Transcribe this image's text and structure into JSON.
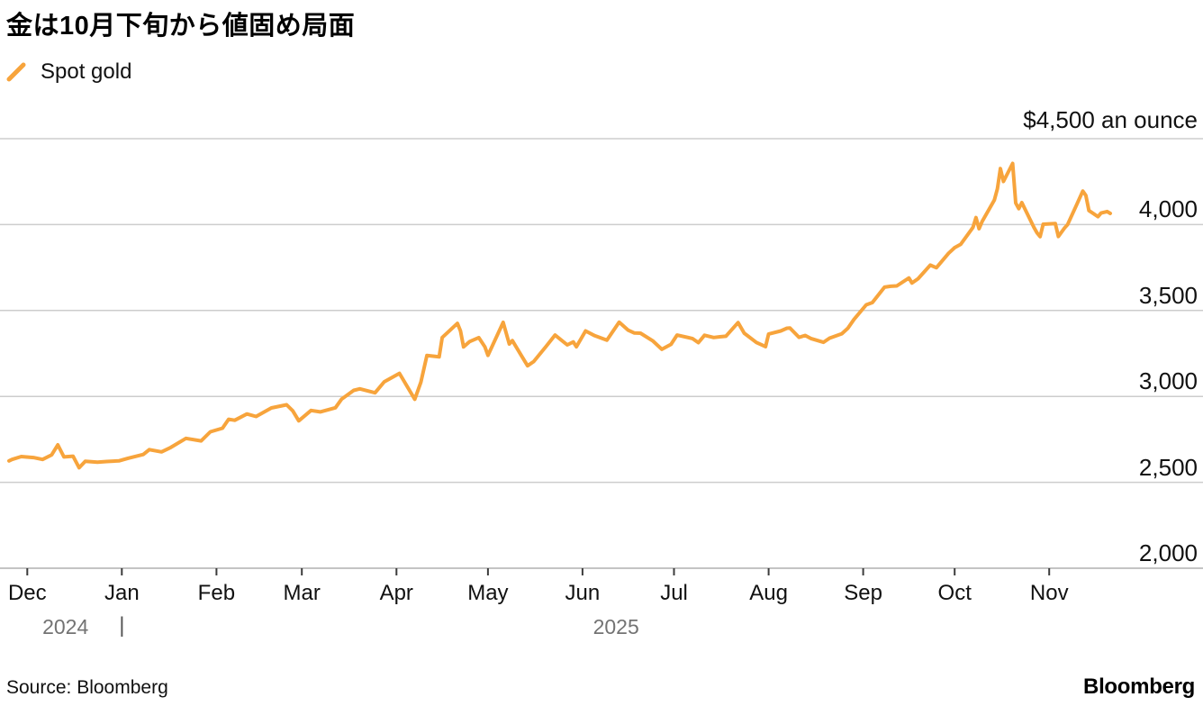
{
  "title": "金は10月下旬から値固め局面",
  "legend": {
    "label": "Spot gold",
    "color": "#F7A43C"
  },
  "footer": {
    "source": "Source: Bloomberg",
    "logo": "Bloomberg"
  },
  "colors": {
    "line": "#F7A43C",
    "gridline": "#cdcdcd",
    "axis": "#c4c4c4",
    "tick": "#3c3c3c",
    "label": "#111111",
    "year": "#737373"
  },
  "chart_data": {
    "type": "line",
    "title": "金は10月下旬から値固め局面",
    "unit": "an ounce",
    "ylim": [
      2000,
      4500
    ],
    "grid": true,
    "legend_position": "top-left",
    "y_ticks": [
      {
        "label": "$4,500 an ounce",
        "value": 4500,
        "top_axis_label": true
      },
      {
        "label": "4,000",
        "value": 4000
      },
      {
        "label": "3,500",
        "value": 3500
      },
      {
        "label": "3,000",
        "value": 3000
      },
      {
        "label": "2,500",
        "value": 2500
      },
      {
        "label": "2,000",
        "value": 2000,
        "is_axis": true
      }
    ],
    "x_ticks": [
      {
        "label": "Dec",
        "date": "2024-12-01"
      },
      {
        "label": "Jan",
        "date": "2025-01-01"
      },
      {
        "label": "Feb",
        "date": "2025-02-01"
      },
      {
        "label": "Mar",
        "date": "2025-03-01"
      },
      {
        "label": "Apr",
        "date": "2025-04-01"
      },
      {
        "label": "May",
        "date": "2025-05-01"
      },
      {
        "label": "Jun",
        "date": "2025-06-01"
      },
      {
        "label": "Jul",
        "date": "2025-07-01"
      },
      {
        "label": "Aug",
        "date": "2025-08-01"
      },
      {
        "label": "Sep",
        "date": "2025-09-01"
      },
      {
        "label": "Oct",
        "date": "2025-10-01"
      },
      {
        "label": "Nov",
        "date": "2025-11-01"
      }
    ],
    "years": [
      {
        "label": "2024",
        "span": [
          "2024-11-25",
          "2025-01-01"
        ]
      },
      {
        "label": "2025",
        "span": [
          "2025-01-01",
          "2025-11-21"
        ]
      }
    ],
    "year_divider": {
      "glyph": "|",
      "date": "2025-01-01"
    },
    "series": [
      {
        "name": "Spot gold",
        "color": "#F7A43C",
        "points": [
          [
            "2024-11-25",
            2625
          ],
          [
            "2024-11-26",
            2633
          ],
          [
            "2024-11-29",
            2650
          ],
          [
            "2024-12-03",
            2644
          ],
          [
            "2024-12-06",
            2633
          ],
          [
            "2024-12-09",
            2660
          ],
          [
            "2024-12-11",
            2718
          ],
          [
            "2024-12-13",
            2648
          ],
          [
            "2024-12-16",
            2652
          ],
          [
            "2024-12-18",
            2585
          ],
          [
            "2024-12-20",
            2622
          ],
          [
            "2024-12-24",
            2617
          ],
          [
            "2024-12-27",
            2621
          ],
          [
            "2024-12-31",
            2625
          ],
          [
            "2025-01-03",
            2640
          ],
          [
            "2025-01-08",
            2662
          ],
          [
            "2025-01-10",
            2690
          ],
          [
            "2025-01-14",
            2677
          ],
          [
            "2025-01-17",
            2703
          ],
          [
            "2025-01-22",
            2756
          ],
          [
            "2025-01-27",
            2741
          ],
          [
            "2025-01-30",
            2794
          ],
          [
            "2025-02-03",
            2815
          ],
          [
            "2025-02-05",
            2867
          ],
          [
            "2025-02-07",
            2861
          ],
          [
            "2025-02-11",
            2898
          ],
          [
            "2025-02-14",
            2883
          ],
          [
            "2025-02-19",
            2933
          ],
          [
            "2025-02-24",
            2951
          ],
          [
            "2025-02-26",
            2916
          ],
          [
            "2025-02-28",
            2858
          ],
          [
            "2025-03-04",
            2918
          ],
          [
            "2025-03-07",
            2910
          ],
          [
            "2025-03-12",
            2934
          ],
          [
            "2025-03-14",
            2984
          ],
          [
            "2025-03-18",
            3035
          ],
          [
            "2025-03-20",
            3044
          ],
          [
            "2025-03-25",
            3021
          ],
          [
            "2025-03-28",
            3085
          ],
          [
            "2025-04-02",
            3134
          ],
          [
            "2025-04-07",
            2983
          ],
          [
            "2025-04-09",
            3083
          ],
          [
            "2025-04-11",
            3238
          ],
          [
            "2025-04-15",
            3230
          ],
          [
            "2025-04-16",
            3343
          ],
          [
            "2025-04-21",
            3425
          ],
          [
            "2025-04-22",
            3381
          ],
          [
            "2025-04-23",
            3288
          ],
          [
            "2025-04-25",
            3319
          ],
          [
            "2025-04-28",
            3342
          ],
          [
            "2025-04-30",
            3288
          ],
          [
            "2025-05-01",
            3239
          ],
          [
            "2025-05-06",
            3431
          ],
          [
            "2025-05-08",
            3305
          ],
          [
            "2025-05-09",
            3325
          ],
          [
            "2025-05-12",
            3236
          ],
          [
            "2025-05-14",
            3178
          ],
          [
            "2025-05-16",
            3203
          ],
          [
            "2025-05-20",
            3290
          ],
          [
            "2025-05-23",
            3357
          ],
          [
            "2025-05-27",
            3300
          ],
          [
            "2025-05-29",
            3317
          ],
          [
            "2025-05-30",
            3289
          ],
          [
            "2025-06-02",
            3381
          ],
          [
            "2025-06-05",
            3353
          ],
          [
            "2025-06-09",
            3327
          ],
          [
            "2025-06-13",
            3432
          ],
          [
            "2025-06-16",
            3385
          ],
          [
            "2025-06-18",
            3369
          ],
          [
            "2025-06-20",
            3368
          ],
          [
            "2025-06-24",
            3324
          ],
          [
            "2025-06-27",
            3274
          ],
          [
            "2025-06-30",
            3303
          ],
          [
            "2025-07-02",
            3357
          ],
          [
            "2025-07-07",
            3337
          ],
          [
            "2025-07-09",
            3313
          ],
          [
            "2025-07-11",
            3356
          ],
          [
            "2025-07-14",
            3343
          ],
          [
            "2025-07-16",
            3347
          ],
          [
            "2025-07-18",
            3350
          ],
          [
            "2025-07-22",
            3430
          ],
          [
            "2025-07-24",
            3368
          ],
          [
            "2025-07-28",
            3314
          ],
          [
            "2025-07-31",
            3290
          ],
          [
            "2025-08-01",
            3363
          ],
          [
            "2025-08-05",
            3381
          ],
          [
            "2025-08-07",
            3397
          ],
          [
            "2025-08-08",
            3398
          ],
          [
            "2025-08-11",
            3344
          ],
          [
            "2025-08-13",
            3355
          ],
          [
            "2025-08-15",
            3336
          ],
          [
            "2025-08-19",
            3315
          ],
          [
            "2025-08-21",
            3339
          ],
          [
            "2025-08-25",
            3365
          ],
          [
            "2025-08-27",
            3397
          ],
          [
            "2025-08-29",
            3448
          ],
          [
            "2025-09-02",
            3533
          ],
          [
            "2025-09-04",
            3546
          ],
          [
            "2025-09-08",
            3636
          ],
          [
            "2025-09-10",
            3641
          ],
          [
            "2025-09-12",
            3643
          ],
          [
            "2025-09-16",
            3689
          ],
          [
            "2025-09-17",
            3660
          ],
          [
            "2025-09-19",
            3685
          ],
          [
            "2025-09-23",
            3764
          ],
          [
            "2025-09-25",
            3749
          ],
          [
            "2025-09-29",
            3833
          ],
          [
            "2025-10-01",
            3866
          ],
          [
            "2025-10-03",
            3886
          ],
          [
            "2025-10-07",
            3983
          ],
          [
            "2025-10-08",
            4041
          ],
          [
            "2025-10-09",
            3976
          ],
          [
            "2025-10-10",
            4018
          ],
          [
            "2025-10-14",
            4143
          ],
          [
            "2025-10-15",
            4209
          ],
          [
            "2025-10-16",
            4326
          ],
          [
            "2025-10-17",
            4251
          ],
          [
            "2025-10-20",
            4356
          ],
          [
            "2025-10-21",
            4126
          ],
          [
            "2025-10-22",
            4093
          ],
          [
            "2025-10-23",
            4128
          ],
          [
            "2025-10-27",
            3983
          ],
          [
            "2025-10-28",
            3952
          ],
          [
            "2025-10-29",
            3930
          ],
          [
            "2025-10-30",
            4002
          ],
          [
            "2025-11-03",
            4006
          ],
          [
            "2025-11-04",
            3931
          ],
          [
            "2025-11-06",
            3980
          ],
          [
            "2025-11-07",
            4000
          ],
          [
            "2025-11-10",
            4116
          ],
          [
            "2025-11-12",
            4195
          ],
          [
            "2025-11-13",
            4170
          ],
          [
            "2025-11-14",
            4082
          ],
          [
            "2025-11-17",
            4046
          ],
          [
            "2025-11-18",
            4067
          ],
          [
            "2025-11-20",
            4076
          ],
          [
            "2025-11-21",
            4065
          ]
        ]
      }
    ]
  }
}
